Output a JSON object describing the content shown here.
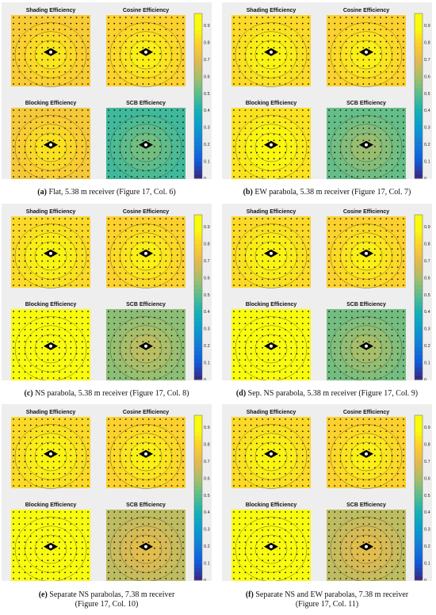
{
  "chart_data": [
    {
      "type": "heatmap",
      "panel_label": "(a)",
      "caption": "Flat, 5.38 m receiver (Figure 17, Col. 6)",
      "caption_lines": [
        "(a) Flat, 5.38 m receiver (Figure 17, Col. 6)"
      ],
      "subplots": [
        {
          "title": "Shading Efficiency",
          "mean_value": 0.76
        },
        {
          "title": "Cosine Efficiency",
          "mean_value": 0.78
        },
        {
          "title": "Blocking Efficiency",
          "mean_value": 0.75
        },
        {
          "title": "SCB Efficiency",
          "mean_value": 0.45
        }
      ],
      "colorbar": {
        "ticks": [
          0,
          0.1,
          0.2,
          0.3,
          0.4,
          0.5,
          0.6,
          0.7,
          0.8,
          0.9
        ],
        "range": [
          0,
          0.97
        ],
        "colormap": "parula"
      }
    },
    {
      "type": "heatmap",
      "panel_label": "(b)",
      "caption": "EW parabola, 5.38 m receiver (Figure 17, Col. 7)",
      "caption_lines": [
        "(b) EW parabola, 5.38 m receiver (Figure 17, Col. 7)"
      ],
      "subplots": [
        {
          "title": "Shading Efficiency",
          "mean_value": 0.8
        },
        {
          "title": "Cosine Efficiency",
          "mean_value": 0.78
        },
        {
          "title": "Blocking Efficiency",
          "mean_value": 0.82
        },
        {
          "title": "SCB Efficiency",
          "mean_value": 0.5
        }
      ],
      "colorbar": {
        "ticks": [
          0,
          0.1,
          0.2,
          0.3,
          0.4,
          0.5,
          0.6,
          0.7,
          0.8,
          0.9
        ],
        "range": [
          0,
          0.97
        ],
        "colormap": "parula"
      }
    },
    {
      "type": "heatmap",
      "panel_label": "(c)",
      "caption": "NS parabola, 5.38 m receiver (Figure 17, Col. 8)",
      "caption_lines": [
        "(c) NS parabola, 5.38 m receiver (Figure 17, Col. 8)"
      ],
      "subplots": [
        {
          "title": "Shading Efficiency",
          "mean_value": 0.8
        },
        {
          "title": "Cosine Efficiency",
          "mean_value": 0.78
        },
        {
          "title": "Blocking Efficiency",
          "mean_value": 0.9
        },
        {
          "title": "SCB Efficiency",
          "mean_value": 0.55
        }
      ],
      "colorbar": {
        "ticks": [
          0,
          0.1,
          0.2,
          0.3,
          0.4,
          0.5,
          0.6,
          0.7,
          0.8,
          0.9
        ],
        "range": [
          0,
          0.97
        ],
        "colormap": "parula"
      }
    },
    {
      "type": "heatmap",
      "panel_label": "(d)",
      "caption": "Sep. NS parabola, 5.38 m receiver (Figure 17, Col. 9)",
      "caption_lines": [
        "(d) Sep. NS parabola, 5.38 m receiver (Figure 17, Col. 9)"
      ],
      "subplots": [
        {
          "title": "Shading Efficiency",
          "mean_value": 0.8
        },
        {
          "title": "Cosine Efficiency",
          "mean_value": 0.78
        },
        {
          "title": "Blocking Efficiency",
          "mean_value": 0.88
        },
        {
          "title": "SCB Efficiency",
          "mean_value": 0.52
        }
      ],
      "colorbar": {
        "ticks": [
          0,
          0.1,
          0.2,
          0.3,
          0.4,
          0.5,
          0.6,
          0.7,
          0.8,
          0.9
        ],
        "range": [
          0,
          0.97
        ],
        "colormap": "parula"
      }
    },
    {
      "type": "heatmap",
      "panel_label": "(e)",
      "caption": "Separate NS parabolas, 7.38 m receiver (Figure 17, Col. 10)",
      "caption_lines": [
        "(e) Separate NS parabolas, 7.38 m receiver",
        "(Figure 17, Col. 10)"
      ],
      "subplots": [
        {
          "title": "Shading Efficiency",
          "mean_value": 0.8
        },
        {
          "title": "Cosine Efficiency",
          "mean_value": 0.78
        },
        {
          "title": "Blocking Efficiency",
          "mean_value": 0.93
        },
        {
          "title": "SCB Efficiency",
          "mean_value": 0.62
        }
      ],
      "colorbar": {
        "ticks": [
          0,
          0.1,
          0.2,
          0.3,
          0.4,
          0.5,
          0.6,
          0.7,
          0.8,
          0.9
        ],
        "range": [
          0,
          0.97
        ],
        "colormap": "parula"
      }
    },
    {
      "type": "heatmap",
      "panel_label": "(f)",
      "caption": "Separate NS and EW parabolas, 7.38 m receiver (Figure 17, Col. 11)",
      "caption_lines": [
        "(f) Separate NS and EW parabolas, 7.38 m receiver",
        "(Figure 17, Col. 11)"
      ],
      "subplots": [
        {
          "title": "Shading Efficiency",
          "mean_value": 0.8
        },
        {
          "title": "Cosine Efficiency",
          "mean_value": 0.78
        },
        {
          "title": "Blocking Efficiency",
          "mean_value": 0.93
        },
        {
          "title": "SCB Efficiency",
          "mean_value": 0.62
        }
      ],
      "colorbar": {
        "ticks": [
          0,
          0.1,
          0.2,
          0.3,
          0.4,
          0.5,
          0.6,
          0.7,
          0.8,
          0.9
        ],
        "range": [
          0,
          0.97
        ],
        "colormap": "parula"
      }
    }
  ]
}
